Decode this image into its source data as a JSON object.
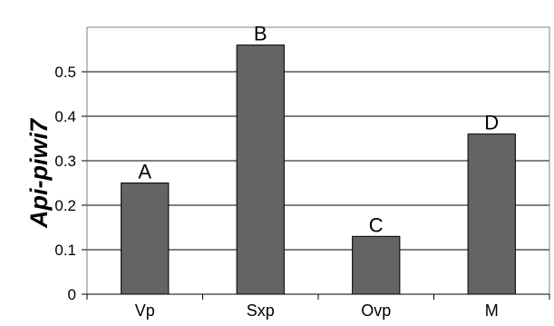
{
  "chart_data": {
    "type": "bar",
    "title": "",
    "xlabel": "",
    "ylabel": "Api-piwi7",
    "categories": [
      "Vp",
      "Sxp",
      "Ovp",
      "M"
    ],
    "values": [
      0.25,
      0.56,
      0.13,
      0.36
    ],
    "data_labels": [
      "A",
      "B",
      "C",
      "D"
    ],
    "ylim": [
      0,
      0.6
    ],
    "yticks": [
      0,
      0.1,
      0.2,
      0.3,
      0.4,
      0.5
    ],
    "ytick_labels": [
      "0",
      "0.1",
      "0.2",
      "0.3",
      "0.4",
      "0.5"
    ],
    "grid": true,
    "legend": "none",
    "colors": {
      "bar_fill": "#646464",
      "bar_stroke": "#000000",
      "grid": "#000000",
      "axis": "#808080"
    }
  }
}
